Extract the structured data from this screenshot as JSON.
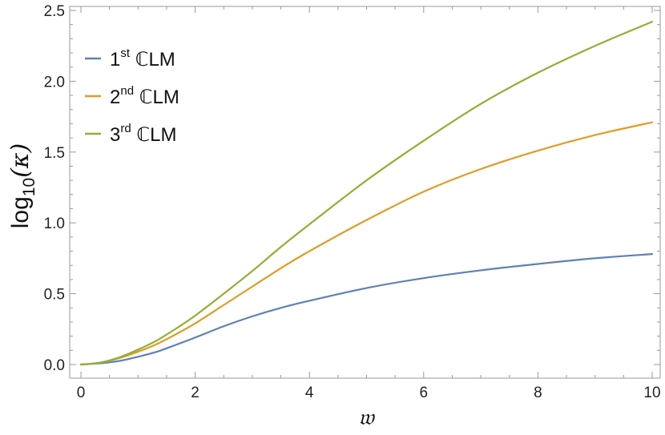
{
  "chart_data": {
    "type": "line",
    "xlabel": "𝔴",
    "ylabel_main": "log",
    "ylabel_sub": "10",
    "ylabel_arg": "(κ)",
    "xlim": [
      0,
      10
    ],
    "ylim": [
      0,
      2.5
    ],
    "x_ticks": [
      0,
      2,
      4,
      6,
      8,
      10
    ],
    "x_tick_labels": [
      "0",
      "2",
      "4",
      "6",
      "8",
      "10"
    ],
    "y_ticks": [
      0,
      0.5,
      1.0,
      1.5,
      2.0,
      2.5
    ],
    "y_tick_labels": [
      "0.0",
      "0.5",
      "1.0",
      "1.5",
      "2.0",
      "2.5"
    ],
    "legend_position": "top-left",
    "grid": false,
    "x": [
      0,
      0.33,
      0.67,
      1.0,
      1.33,
      1.67,
      2.0,
      2.5,
      3.0,
      3.5,
      4.0,
      5.0,
      6.0,
      7.0,
      8.0,
      9.0,
      10.0
    ],
    "series": [
      {
        "name_num": "1",
        "name_sup": "st",
        "name_rest": " ℂLM",
        "color": "#5e81b5",
        "values": [
          0,
          0.008,
          0.025,
          0.055,
          0.09,
          0.14,
          0.19,
          0.27,
          0.34,
          0.4,
          0.45,
          0.54,
          0.61,
          0.665,
          0.71,
          0.75,
          0.78
        ]
      },
      {
        "name_num": "2",
        "name_sup": "nd",
        "name_rest": " ℂLM",
        "color": "#e19c24",
        "values": [
          0,
          0.012,
          0.045,
          0.09,
          0.145,
          0.215,
          0.29,
          0.42,
          0.55,
          0.68,
          0.8,
          1.02,
          1.22,
          1.38,
          1.51,
          1.62,
          1.71
        ]
      },
      {
        "name_num": "3",
        "name_sup": "rd",
        "name_rest": " ℂLM",
        "color": "#8fb032",
        "values": [
          0,
          0.013,
          0.05,
          0.105,
          0.17,
          0.255,
          0.345,
          0.5,
          0.66,
          0.83,
          0.99,
          1.3,
          1.58,
          1.84,
          2.06,
          2.25,
          2.42
        ]
      }
    ]
  }
}
